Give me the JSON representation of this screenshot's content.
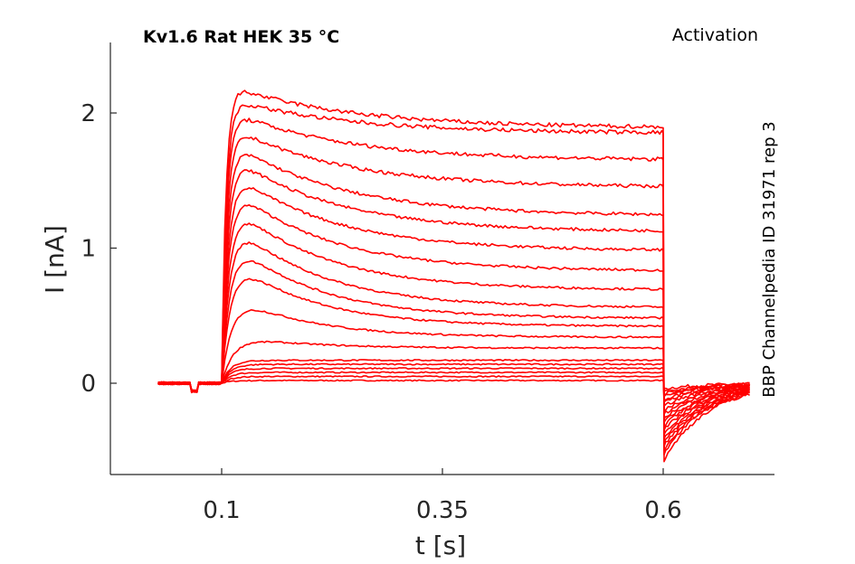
{
  "chart_data": {
    "type": "line",
    "title": "Kv1.6  Rat  HEK  35 °C",
    "subtitle": "Activation",
    "side_label": "BBP Channelpedia ID 31971 rep 3",
    "xlabel": "t [s]",
    "ylabel": "I [nA]",
    "xlim": [
      0.0,
      0.75
    ],
    "ylim": [
      -0.68,
      2.5
    ],
    "xticks": [
      {
        "value": 0.1,
        "label": "0.1"
      },
      {
        "value": 0.35,
        "label": "0.35"
      },
      {
        "value": 0.6,
        "label": "0.6"
      }
    ],
    "yticks": [
      {
        "value": 0,
        "label": "0"
      },
      {
        "value": 1,
        "label": "1"
      },
      {
        "value": 2,
        "label": "2"
      }
    ],
    "line_color": "#ff0000",
    "pulse_start": 0.1,
    "pulse_end": 0.6,
    "x_start": 0.028,
    "x_end": 0.698,
    "series": [
      {
        "peak": 0.02,
        "steady": 0.02,
        "tail": -0.04
      },
      {
        "peak": 0.05,
        "steady": 0.05,
        "tail": -0.06
      },
      {
        "peak": 0.08,
        "steady": 0.08,
        "tail": -0.08
      },
      {
        "peak": 0.11,
        "steady": 0.11,
        "tail": -0.1
      },
      {
        "peak": 0.14,
        "steady": 0.14,
        "tail": -0.12
      },
      {
        "peak": 0.17,
        "steady": 0.17,
        "tail": -0.14
      },
      {
        "peak": 0.36,
        "steady": 0.26,
        "tail": -0.17
      },
      {
        "peak": 0.69,
        "steady": 0.34,
        "tail": -0.2
      },
      {
        "peak": 0.98,
        "steady": 0.42,
        "tail": -0.23
      },
      {
        "peak": 1.13,
        "steady": 0.48,
        "tail": -0.26
      },
      {
        "peak": 1.27,
        "steady": 0.56,
        "tail": -0.29
      },
      {
        "peak": 1.4,
        "steady": 0.69,
        "tail": -0.32
      },
      {
        "peak": 1.52,
        "steady": 0.83,
        "tail": -0.35
      },
      {
        "peak": 1.63,
        "steady": 0.98,
        "tail": -0.38
      },
      {
        "peak": 1.74,
        "steady": 1.12,
        "tail": -0.41
      },
      {
        "peak": 1.84,
        "steady": 1.24,
        "tail": -0.44
      },
      {
        "peak": 1.94,
        "steady": 1.45,
        "tail": -0.47
      },
      {
        "peak": 2.04,
        "steady": 1.65,
        "tail": -0.5
      },
      {
        "peak": 2.12,
        "steady": 1.85,
        "tail": -0.53
      },
      {
        "peak": 2.22,
        "steady": 1.89,
        "tail": -0.58
      }
    ]
  }
}
